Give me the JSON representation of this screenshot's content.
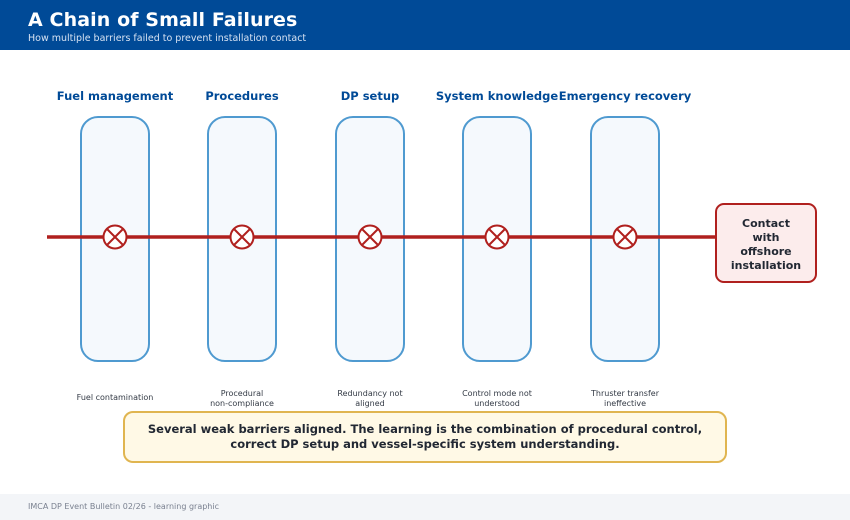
{
  "header": {
    "title": "A Chain of Small Failures",
    "subtitle": "How multiple barriers failed to prevent installation contact"
  },
  "barriers": [
    {
      "name": "Fuel management",
      "failure": [
        "Fuel contamination"
      ]
    },
    {
      "name": "Procedures",
      "failure": [
        "Procedural",
        "non-compliance"
      ]
    },
    {
      "name": "DP setup",
      "failure": [
        "Redundancy not",
        "aligned"
      ]
    },
    {
      "name": "System knowledge",
      "failure": [
        "Control mode not",
        "understood"
      ]
    },
    {
      "name": "Emergency recovery",
      "failure": [
        "Thruster transfer",
        "ineffective"
      ]
    }
  ],
  "outcome": {
    "lines": [
      "Contact",
      "with",
      "offshore",
      "installation"
    ]
  },
  "callout": {
    "line1": "Several weak barriers aligned. The learning is the combination of procedural control,",
    "line2": "correct DP setup and vessel-specific system understanding."
  },
  "footer": {
    "text": "IMCA DP Event Bulletin 02/26 - learning graphic"
  },
  "colors": {
    "header_bg": "#004a97",
    "title_text": "#004a97",
    "barrier_stroke": "#4f9ad0",
    "barrier_fill": "#f5f9fd",
    "failure_path": "#b0201e",
    "outcome_fill": "#fcecec",
    "callout_fill": "#fff9e6",
    "callout_stroke": "#e0b550"
  },
  "icons": {
    "failure_mark": "circle-x-icon"
  }
}
